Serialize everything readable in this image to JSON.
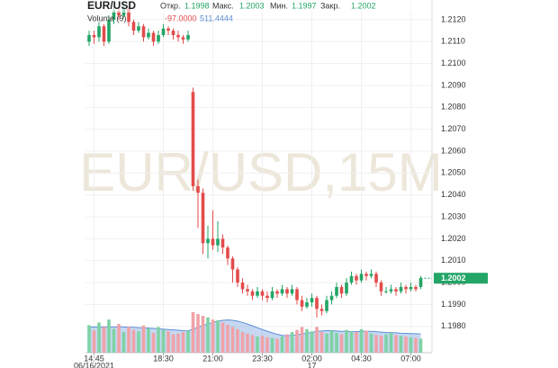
{
  "chart_data": {
    "type": "candlestick",
    "symbol": "EUR/USD",
    "watermark": "EUR/USD,15M",
    "ohlc_header": [
      {
        "label": "Откр.",
        "value": 1.1998
      },
      {
        "label": "Макс.",
        "value": 1.2003
      },
      {
        "label": "Мин.",
        "value": 1.1997
      },
      {
        "label": "Закр.",
        "value": 1.2002
      }
    ],
    "volume_header": {
      "label": "Volume (9)",
      "change": {
        "value": -97,
        "label": "-97.0000"
      },
      "ma": 511.4444
    },
    "last_price": 1.2002,
    "up_color": "#22a566",
    "down_color": "#e34b4b",
    "volume_up_color": "#7fd2a6",
    "volume_down_color": "#f0a2a8",
    "volume_ma_color": "#5b8fd6",
    "grid": true,
    "categories": [
      null,
      "14:45",
      null,
      null,
      null,
      null,
      null,
      null,
      null,
      null,
      null,
      null,
      null,
      null,
      null,
      "18:30",
      null,
      null,
      null,
      null,
      null,
      null,
      null,
      null,
      null,
      "21:00",
      null,
      null,
      null,
      null,
      null,
      null,
      null,
      null,
      null,
      "23:30",
      null,
      null,
      null,
      null,
      null,
      null,
      null,
      null,
      null,
      "02:00",
      null,
      null,
      null,
      null,
      null,
      null,
      null,
      null,
      null,
      "04:30",
      null,
      null,
      null,
      null,
      null,
      null,
      null,
      null,
      null,
      "07:00",
      null,
      null
    ],
    "date_labels": [
      null,
      "06/16/2021",
      null,
      null,
      null,
      null,
      null,
      null,
      null,
      null,
      null,
      null,
      null,
      null,
      null,
      null,
      null,
      null,
      null,
      null,
      null,
      null,
      null,
      null,
      null,
      null,
      null,
      null,
      null,
      null,
      null,
      null,
      null,
      null,
      null,
      null,
      null,
      null,
      null,
      null,
      null,
      null,
      null,
      null,
      null,
      "17",
      null,
      null,
      null,
      null,
      null,
      null,
      null,
      null,
      null,
      null,
      null,
      null,
      null,
      null,
      null,
      null,
      null,
      null,
      null,
      null,
      null,
      null
    ],
    "ohlc": [
      [
        1.211,
        1.2115,
        1.2108,
        1.2113
      ],
      [
        1.2113,
        1.2115,
        1.2109,
        1.2112
      ],
      [
        1.2112,
        1.2119,
        1.211,
        1.2117
      ],
      [
        1.2117,
        1.2118,
        1.2108,
        1.211
      ],
      [
        1.211,
        1.2122,
        1.2109,
        1.212
      ],
      [
        1.212,
        1.2126,
        1.2118,
        1.2124
      ],
      [
        1.2124,
        1.2126,
        1.212,
        1.2122
      ],
      [
        1.2122,
        1.2128,
        1.2121,
        1.2125
      ],
      [
        1.2125,
        1.2126,
        1.2117,
        1.2119
      ],
      [
        1.2119,
        1.212,
        1.2113,
        1.2115
      ],
      [
        1.2115,
        1.2119,
        1.2114,
        1.2117
      ],
      [
        1.2117,
        1.2118,
        1.211,
        1.2112
      ],
      [
        1.2112,
        1.2116,
        1.2111,
        1.2114
      ],
      [
        1.2114,
        1.2115,
        1.2108,
        1.211
      ],
      [
        1.211,
        1.2115,
        1.2109,
        1.2113
      ],
      [
        1.2113,
        1.2118,
        1.2112,
        1.2116
      ],
      [
        1.2116,
        1.2117,
        1.2113,
        1.2115
      ],
      [
        1.2115,
        1.2116,
        1.2111,
        1.2113
      ],
      [
        1.2113,
        1.2115,
        1.211,
        1.2112
      ],
      [
        1.2112,
        1.2113,
        1.2109,
        1.2111
      ],
      [
        1.2111,
        1.2115,
        1.211,
        1.2113
      ],
      [
        1.2087,
        1.2089,
        1.2042,
        1.2044
      ],
      [
        1.2044,
        1.2047,
        1.2025,
        1.2041
      ],
      [
        1.2041,
        1.2043,
        1.2013,
        1.2018
      ],
      [
        1.2018,
        1.2026,
        1.2011,
        1.202
      ],
      [
        1.202,
        1.2033,
        1.2015,
        1.2017
      ],
      [
        1.2017,
        1.2028,
        1.2014,
        1.202
      ],
      [
        1.202,
        1.2022,
        1.2013,
        1.2016
      ],
      [
        1.2016,
        1.2017,
        1.2008,
        1.2011
      ],
      [
        1.2011,
        1.2012,
        1.2,
        1.2006
      ],
      [
        1.2006,
        1.2007,
        1.1998,
        1.2
      ],
      [
        1.2,
        1.2002,
        1.1995,
        1.1997
      ],
      [
        1.1997,
        1.1999,
        1.1994,
        1.1996
      ],
      [
        1.1996,
        1.1997,
        1.1992,
        1.1994
      ],
      [
        1.1994,
        1.1998,
        1.1993,
        1.1996
      ],
      [
        1.1996,
        1.1997,
        1.1992,
        1.1994
      ],
      [
        1.1994,
        1.1996,
        1.1991,
        1.1993
      ],
      [
        1.1993,
        1.1998,
        1.1992,
        1.1996
      ],
      [
        1.1996,
        1.1997,
        1.1993,
        1.1995
      ],
      [
        1.1995,
        1.1999,
        1.1994,
        1.1997
      ],
      [
        1.1997,
        1.1998,
        1.1993,
        1.1995
      ],
      [
        1.1995,
        1.1999,
        1.1994,
        1.1997
      ],
      [
        1.1997,
        1.1998,
        1.199,
        1.1992
      ],
      [
        1.1992,
        1.1994,
        1.1987,
        1.1989
      ],
      [
        1.1989,
        1.1993,
        1.1988,
        1.1991
      ],
      [
        1.1991,
        1.1995,
        1.1989,
        1.1993
      ],
      [
        1.1993,
        1.1994,
        1.1984,
        1.1988
      ],
      [
        1.1988,
        1.199,
        1.1985,
        1.1987
      ],
      [
        1.1987,
        1.1994,
        1.1986,
        1.1992
      ],
      [
        1.1992,
        1.1996,
        1.199,
        1.1994
      ],
      [
        1.1994,
        1.2,
        1.1993,
        1.1998
      ],
      [
        1.1998,
        1.1999,
        1.1993,
        1.1995
      ],
      [
        1.1995,
        1.2002,
        1.1994,
        1.2
      ],
      [
        1.2,
        1.2005,
        1.1999,
        1.2003
      ],
      [
        1.2003,
        1.2004,
        1.1999,
        1.2001
      ],
      [
        1.2001,
        1.2006,
        1.2,
        1.2004
      ],
      [
        1.2004,
        1.2005,
        1.2001,
        1.2003
      ],
      [
        1.2003,
        1.2006,
        1.2002,
        1.2004
      ],
      [
        1.2004,
        1.2005,
        1.1998,
        1.2
      ],
      [
        1.2,
        1.2001,
        1.1994,
        1.1996
      ],
      [
        1.1996,
        1.1998,
        1.1995,
        1.1996
      ],
      [
        1.1996,
        1.1999,
        1.1995,
        1.1997
      ],
      [
        1.1997,
        1.1998,
        1.1994,
        1.1996
      ],
      [
        1.1996,
        1.2,
        1.1995,
        1.1998
      ],
      [
        1.1998,
        1.1999,
        1.1995,
        1.1997
      ],
      [
        1.1997,
        1.2,
        1.1996,
        1.1998
      ],
      [
        1.1998,
        1.1999,
        1.1996,
        1.1997
      ],
      [
        1.1998,
        1.2003,
        1.1997,
        1.2002
      ]
    ],
    "volume": [
      750,
      600,
      820,
      700,
      900,
      650,
      780,
      560,
      700,
      620,
      580,
      740,
      660,
      540,
      700,
      620,
      580,
      500,
      520,
      560,
      600,
      1100,
      1050,
      1000,
      960,
      900,
      880,
      820,
      760,
      700,
      640,
      560,
      520,
      480,
      440,
      460,
      420,
      400,
      380,
      440,
      500,
      560,
      620,
      700,
      640,
      580,
      700,
      560,
      520,
      600,
      540,
      500,
      620,
      580,
      560,
      640,
      600,
      520,
      480,
      460,
      500,
      540,
      480,
      460,
      440,
      420,
      400,
      380
    ],
    "volume_ma": [
      700,
      700,
      700,
      700,
      700,
      700,
      705,
      700,
      695,
      690,
      680,
      675,
      670,
      660,
      650,
      640,
      630,
      620,
      610,
      600,
      595,
      640,
      690,
      740,
      780,
      820,
      860,
      880,
      890,
      880,
      860,
      820,
      780,
      730,
      680,
      630,
      580,
      540,
      500,
      470,
      460,
      470,
      490,
      510,
      530,
      550,
      580,
      590,
      600,
      600,
      590,
      580,
      580,
      570,
      570,
      580,
      580,
      580,
      570,
      560,
      550,
      545,
      540,
      530,
      525,
      520,
      515,
      511
    ],
    "ylim": [
      1.1968,
      1.2129
    ],
    "yticks": [
      {
        "value": 1.212,
        "label": "1.2120"
      },
      {
        "value": 1.211,
        "label": "1.2110"
      },
      {
        "value": 1.21,
        "label": "1.2100"
      },
      {
        "value": 1.209,
        "label": "1.2090"
      },
      {
        "value": 1.208,
        "label": "1.2080"
      },
      {
        "value": 1.207,
        "label": "1.2070"
      },
      {
        "value": 1.206,
        "label": "1.2060"
      },
      {
        "value": 1.205,
        "label": "1.2050"
      },
      {
        "value": 1.204,
        "label": "1.2040"
      },
      {
        "value": 1.203,
        "label": "1.2030"
      },
      {
        "value": 1.202,
        "label": "1.2020"
      },
      {
        "value": 1.201,
        "label": "1.2010"
      },
      {
        "value": 1.2,
        "label": "1.2000"
      },
      {
        "value": 1.199,
        "label": "1.1990"
      },
      {
        "value": 1.198,
        "label": "1.1980"
      }
    ],
    "volume_ylim": [
      0,
      1100
    ]
  }
}
